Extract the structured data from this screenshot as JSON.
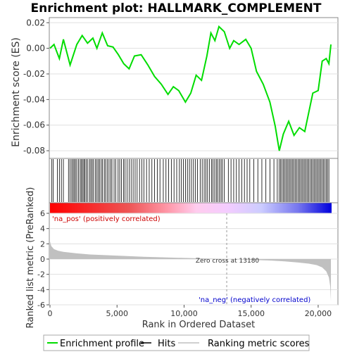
{
  "chart_data": [
    {
      "type": "line",
      "title": "Enrichment plot: HALLMARK_COMPLEMENT",
      "ylabel": "Enrichment score (ES)",
      "ylim": [
        -0.086,
        0.024
      ],
      "yticks": [
        0.02,
        0.0,
        -0.02,
        -0.04,
        -0.06,
        -0.08
      ],
      "ytick_labels": [
        "0.02",
        "0.00",
        "-0.02",
        "-0.04",
        "-0.06",
        "-0.08"
      ],
      "grid": true,
      "line_color": "#00dd00",
      "series": [
        {
          "name": "Enrichment profile",
          "x": [
            0,
            300,
            700,
            1000,
            1500,
            2000,
            2400,
            2800,
            3200,
            3500,
            3900,
            4300,
            4700,
            5100,
            5500,
            5900,
            6300,
            6800,
            7300,
            7800,
            8300,
            8800,
            9200,
            9600,
            10100,
            10500,
            10900,
            11300,
            11700,
            12000,
            12300,
            12600,
            13000,
            13400,
            13700,
            14100,
            14600,
            15000,
            15400,
            15900,
            16400,
            16800,
            17100,
            17400,
            17800,
            18200,
            18600,
            19000,
            19300,
            19600,
            20000,
            20300,
            20600,
            20800,
            20950
          ],
          "values": [
            0.0,
            0.003,
            -0.008,
            0.007,
            -0.013,
            0.003,
            0.01,
            0.004,
            0.008,
            0.0,
            0.012,
            0.002,
            0.001,
            -0.005,
            -0.012,
            -0.016,
            -0.006,
            -0.005,
            -0.013,
            -0.022,
            -0.028,
            -0.036,
            -0.03,
            -0.033,
            -0.042,
            -0.035,
            -0.021,
            -0.025,
            -0.006,
            0.012,
            0.006,
            0.017,
            0.013,
            0.0,
            0.006,
            0.003,
            0.007,
            0.0,
            -0.018,
            -0.028,
            -0.042,
            -0.061,
            -0.08,
            -0.067,
            -0.057,
            -0.068,
            -0.062,
            -0.065,
            -0.05,
            -0.035,
            -0.033,
            -0.01,
            -0.008,
            -0.012,
            0.003
          ]
        }
      ]
    },
    {
      "type": "scatter",
      "series": [
        {
          "name": "Hits",
          "x": [
            120,
            240,
            550,
            700,
            850,
            1000,
            1380,
            1500,
            1620,
            1720,
            1800,
            1900,
            2000,
            2130,
            2250,
            2330,
            2430,
            2520,
            2600,
            2700,
            2820,
            2950,
            3050,
            3150,
            3250,
            3380,
            3500,
            3600,
            3700,
            3820,
            3920,
            4050,
            4150,
            4270,
            4400,
            4520,
            4620,
            4780,
            4900,
            5080,
            5200,
            5330,
            5480,
            5600,
            5750,
            5900,
            6050,
            6200,
            6350,
            6500,
            6680,
            6850,
            7000,
            7200,
            7400,
            7600,
            7800,
            8000,
            8200,
            8450,
            8650,
            8850,
            9050,
            9250,
            9450,
            9650,
            9800,
            9950,
            10100,
            10250,
            10400,
            10550,
            10700,
            10850,
            11000,
            11200,
            11350,
            11500,
            11620,
            11750,
            11900,
            12050,
            12150,
            12280,
            12400,
            12500,
            12620,
            12750,
            12850,
            13000,
            13300,
            13500,
            13700,
            13900,
            14100,
            14300,
            14500,
            14700,
            14900,
            15200,
            15500,
            15800,
            16100,
            16400,
            16700,
            16950,
            17100,
            17200,
            17300,
            17400,
            17500,
            17600,
            17700,
            17800,
            17900,
            18000,
            18100,
            18200,
            18300,
            18400,
            18500,
            18600,
            18700,
            18800,
            18900,
            19000,
            19100,
            19200,
            19300,
            19400,
            19500,
            19600,
            19700,
            19800,
            19900,
            20000,
            20100,
            20200,
            20300,
            20400,
            20500,
            20600,
            20700,
            20800
          ]
        }
      ]
    },
    {
      "type": "area",
      "ylabel": "Ranked list metric (PreRanked)",
      "xlabel": "Rank in Ordered Dataset",
      "ylim": [
        -6,
        6
      ],
      "yticks": [
        6,
        4,
        2,
        0,
        -2,
        -4,
        -6
      ],
      "ytick_labels": [
        "6",
        "4",
        "2",
        "0",
        "-2",
        "-4",
        "-6"
      ],
      "xlim": [
        0,
        21000
      ],
      "xticks": [
        0,
        5000,
        10000,
        15000,
        20000
      ],
      "xtick_labels": [
        "0",
        "5,000",
        "10,000",
        "15,000",
        "20,000"
      ],
      "series": [
        {
          "name": "Ranking metric scores",
          "x": [
            0,
            100,
            300,
            600,
            1000,
            2000,
            3000,
            5000,
            7000,
            9000,
            11000,
            13180,
            15000,
            16500,
            17500,
            18500,
            19300,
            19900,
            20300,
            20600,
            20800,
            20900,
            20950
          ],
          "values": [
            2.3,
            1.7,
            1.3,
            1.1,
            0.95,
            0.75,
            0.6,
            0.45,
            0.3,
            0.2,
            0.1,
            0.0,
            -0.1,
            -0.2,
            -0.3,
            -0.45,
            -0.6,
            -0.8,
            -1.1,
            -1.6,
            -2.4,
            -3.6,
            -5.5
          ]
        }
      ],
      "annotations": [
        "Zero cross at 13180",
        "'na_pos' (positively correlated)",
        "'na_neg' (negatively correlated)"
      ]
    }
  ],
  "legend": {
    "items": [
      {
        "label": "Enrichment profile",
        "color": "#00dd00"
      },
      {
        "label": "Hits",
        "color": "#000000"
      },
      {
        "label": "Ranking metric scores",
        "color": "#c0c0c0"
      }
    ]
  },
  "colors": {
    "positive_text": "#cc0000",
    "negative_text": "#0000cc",
    "bar_red": "#ff0000",
    "bar_blue": "#0000ff",
    "metric_fill": "#c0c0c0",
    "grid": "#e0e0e0"
  }
}
